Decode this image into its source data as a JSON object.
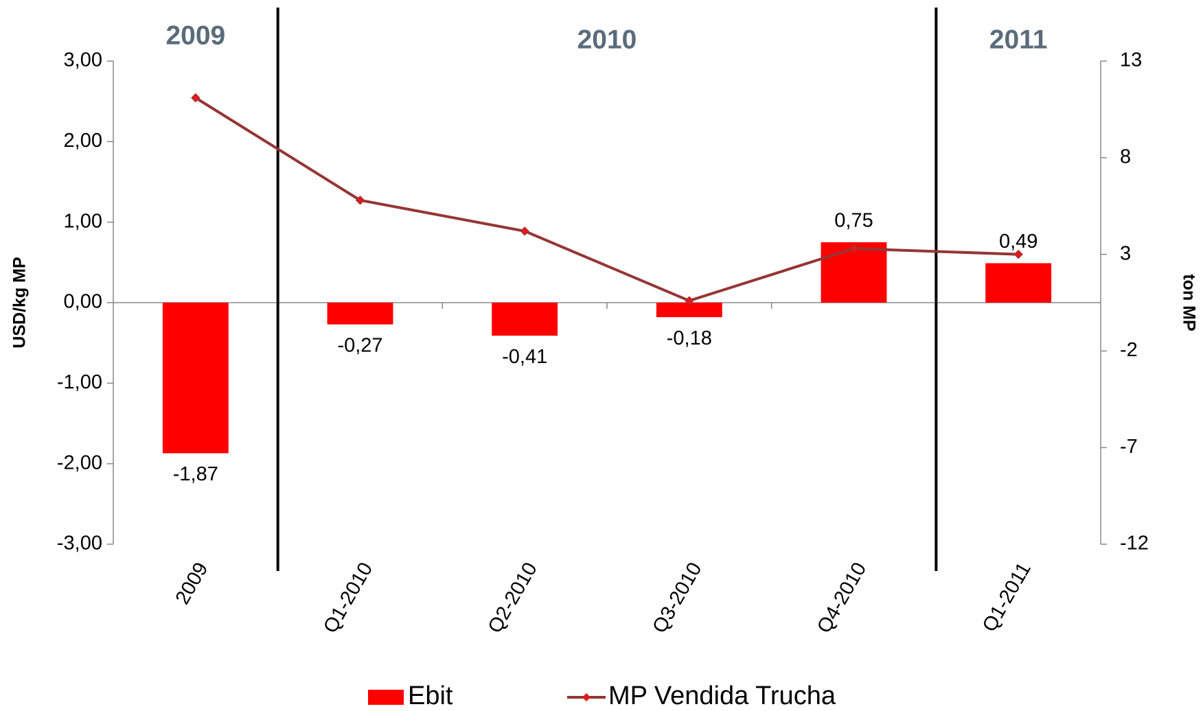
{
  "chart_data": {
    "type": "bar",
    "categories": [
      "2009",
      "Q1-2010",
      "Q2-2010",
      "Q3-2010",
      "Q4-2010",
      "Q1-2011"
    ],
    "annotations": [
      "2009",
      "2010",
      "2011"
    ],
    "y_label": "USD/kg MP",
    "y2_label": "ton MP",
    "ylim": [
      -3,
      3
    ],
    "yticks": [
      {
        "value": -3,
        "label": "-3,00"
      },
      {
        "value": -2,
        "label": "-2,00"
      },
      {
        "value": -1,
        "label": "-1,00"
      },
      {
        "value": 0,
        "label": "0,00"
      },
      {
        "value": 1,
        "label": "1,00"
      },
      {
        "value": 2,
        "label": "2,00"
      },
      {
        "value": 3,
        "label": "3,00"
      }
    ],
    "y2lim": [
      -12,
      13
    ],
    "y2ticks": [
      -12,
      -7,
      -2,
      3,
      8,
      13
    ],
    "series": [
      {
        "name": "Ebit",
        "type": "bar",
        "color": "#ff0000",
        "values": [
          -1.87,
          -0.27,
          -0.41,
          -0.18,
          0.75,
          0.49
        ],
        "value_labels": [
          "-1,87",
          "-0,27",
          "-0,41",
          "-0,18",
          "0,75",
          "0,49"
        ]
      },
      {
        "name": "MP Vendida Trucha",
        "type": "line",
        "axis": "y2",
        "color": "#943634",
        "marker_color": "#e31a1c",
        "values": [
          11.1,
          5.8,
          4.2,
          0.6,
          3.3,
          3.0
        ]
      }
    ]
  }
}
